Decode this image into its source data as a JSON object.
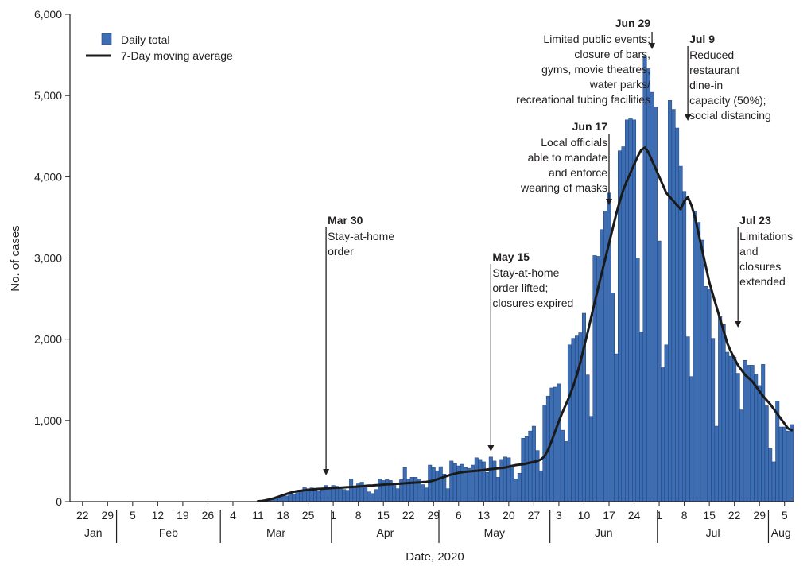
{
  "chart_data": {
    "type": "bar",
    "xlabel": "Date, 2020",
    "ylabel": "No. of cases",
    "ylim": [
      0,
      6000
    ],
    "y_ticks": [
      "0",
      "1,000",
      "2,000",
      "3,000",
      "4,000",
      "5,000",
      "6,000"
    ],
    "x_start_date": "2020-01-19",
    "x_end_date": "2020-08-07",
    "x_ticks": [
      {
        "date": "2020-01-22",
        "label": "22"
      },
      {
        "date": "2020-01-29",
        "label": "29"
      },
      {
        "date": "2020-02-05",
        "label": "5"
      },
      {
        "date": "2020-02-12",
        "label": "12"
      },
      {
        "date": "2020-02-19",
        "label": "19"
      },
      {
        "date": "2020-02-26",
        "label": "26"
      },
      {
        "date": "2020-03-04",
        "label": "4"
      },
      {
        "date": "2020-03-11",
        "label": "11"
      },
      {
        "date": "2020-03-18",
        "label": "18"
      },
      {
        "date": "2020-03-25",
        "label": "25"
      },
      {
        "date": "2020-04-01",
        "label": "1"
      },
      {
        "date": "2020-04-08",
        "label": "8"
      },
      {
        "date": "2020-04-15",
        "label": "15"
      },
      {
        "date": "2020-04-22",
        "label": "22"
      },
      {
        "date": "2020-04-29",
        "label": "29"
      },
      {
        "date": "2020-05-06",
        "label": "6"
      },
      {
        "date": "2020-05-13",
        "label": "13"
      },
      {
        "date": "2020-05-20",
        "label": "20"
      },
      {
        "date": "2020-05-27",
        "label": "27"
      },
      {
        "date": "2020-06-03",
        "label": "3"
      },
      {
        "date": "2020-06-10",
        "label": "10"
      },
      {
        "date": "2020-06-17",
        "label": "17"
      },
      {
        "date": "2020-06-24",
        "label": "24"
      },
      {
        "date": "2020-07-01",
        "label": "1"
      },
      {
        "date": "2020-07-08",
        "label": "8"
      },
      {
        "date": "2020-07-15",
        "label": "15"
      },
      {
        "date": "2020-07-22",
        "label": "22"
      },
      {
        "date": "2020-07-29",
        "label": "29"
      },
      {
        "date": "2020-08-05",
        "label": "5"
      }
    ],
    "months": [
      {
        "label": "Jan",
        "start": "2020-01-19",
        "end": "2020-01-31"
      },
      {
        "label": "Feb",
        "start": "2020-02-01",
        "end": "2020-02-29"
      },
      {
        "label": "Mar",
        "start": "2020-03-01",
        "end": "2020-03-31"
      },
      {
        "label": "Apr",
        "start": "2020-04-01",
        "end": "2020-04-30"
      },
      {
        "label": "May",
        "start": "2020-05-01",
        "end": "2020-05-31"
      },
      {
        "label": "Jun",
        "start": "2020-06-01",
        "end": "2020-06-30"
      },
      {
        "label": "Jul",
        "start": "2020-07-01",
        "end": "2020-07-31"
      },
      {
        "label": "Aug",
        "start": "2020-08-01",
        "end": "2020-08-07"
      }
    ],
    "daily_start": "2020-03-11",
    "series": [
      {
        "name": "Daily total",
        "color": "#3d6eb3",
        "values": [
          2,
          5,
          10,
          15,
          25,
          45,
          60,
          90,
          70,
          110,
          90,
          140,
          120,
          180,
          160,
          170,
          150,
          130,
          170,
          200,
          160,
          200,
          190,
          170,
          150,
          140,
          280,
          170,
          220,
          240,
          180,
          120,
          100,
          150,
          280,
          260,
          270,
          260,
          200,
          160,
          270,
          420,
          280,
          300,
          300,
          280,
          210,
          170,
          450,
          420,
          380,
          430,
          340,
          160,
          500,
          470,
          440,
          460,
          420,
          410,
          450,
          540,
          520,
          490,
          360,
          550,
          500,
          300,
          520,
          550,
          540,
          450,
          280,
          350,
          780,
          800,
          870,
          930,
          630,
          380,
          1190,
          1300,
          1400,
          1410,
          1450,
          880,
          740,
          1930,
          2010,
          2040,
          2080,
          2320,
          1560,
          1050,
          3030,
          3020,
          3350,
          3580,
          3800,
          2570,
          1820,
          4320,
          4370,
          4700,
          4720,
          4700,
          3000,
          2090,
          5480,
          5330,
          5040,
          4860,
          3210,
          1650,
          1930,
          4940,
          4830,
          4600,
          4130,
          3820,
          2030,
          1540,
          3580,
          3440,
          3220,
          2650,
          2620,
          2010,
          930,
          2280,
          2180,
          1840,
          1790,
          1780,
          1580,
          1130,
          1740,
          1680,
          1680,
          1570,
          1430,
          1690,
          1180,
          660,
          490,
          1240,
          920,
          920,
          870,
          950
        ]
      },
      {
        "name": "7-Day moving average",
        "color": "#1a1a1a",
        "values": [
          5,
          8,
          15,
          25,
          35,
          50,
          65,
          80,
          95,
          110,
          120,
          130,
          135,
          140,
          145,
          150,
          155,
          158,
          160,
          162,
          165,
          168,
          170,
          172,
          175,
          178,
          180,
          183,
          186,
          190,
          195,
          198,
          200,
          203,
          206,
          209,
          212,
          215,
          218,
          220,
          223,
          226,
          229,
          232,
          235,
          238,
          241,
          244,
          250,
          260,
          275,
          290,
          305,
          320,
          335,
          345,
          355,
          362,
          368,
          372,
          376,
          380,
          385,
          390,
          395,
          400,
          405,
          410,
          415,
          420,
          430,
          440,
          450,
          455,
          460,
          470,
          480,
          490,
          500,
          520,
          560,
          640,
          750,
          870,
          990,
          1100,
          1200,
          1300,
          1420,
          1560,
          1720,
          1900,
          2080,
          2270,
          2460,
          2640,
          2820,
          3000,
          3180,
          3360,
          3540,
          3700,
          3840,
          3950,
          4050,
          4150,
          4250,
          4330,
          4360,
          4300,
          4200,
          4100,
          4000,
          3900,
          3800,
          3750,
          3700,
          3650,
          3600,
          3700,
          3750,
          3650,
          3500,
          3300,
          3100,
          2900,
          2700,
          2550,
          2400,
          2250,
          2100,
          1950,
          1850,
          1760,
          1680,
          1620,
          1560,
          1520,
          1480,
          1420,
          1360,
          1300,
          1250,
          1200,
          1140,
          1080,
          1020,
          960,
          900,
          880
        ]
      }
    ],
    "legend": {
      "position": "top-left",
      "entries": [
        "Daily total",
        "7-Day moving average"
      ]
    },
    "annotations": [
      {
        "date_label": "Mar 30",
        "lines": [
          "Stay-at-home",
          "order"
        ],
        "date": "2020-03-30",
        "align": "left"
      },
      {
        "date_label": "May 15",
        "lines": [
          "Stay-at-home",
          "order lifted;",
          "closures expired"
        ],
        "date": "2020-05-15",
        "align": "left"
      },
      {
        "date_label": "Jun 17",
        "lines": [
          "Local officials",
          "able to mandate",
          "and enforce",
          "wearing of masks"
        ],
        "date": "2020-06-17",
        "align": "right"
      },
      {
        "date_label": "Jun 29",
        "lines": [
          "Limited public events;",
          "closure of bars,",
          "gyms, movie theatres,",
          "water parks/",
          "recreational tubing facilities"
        ],
        "date": "2020-06-29",
        "align": "right"
      },
      {
        "date_label": "Jul 9",
        "lines": [
          "Reduced",
          "restaurant",
          "dine-in",
          "capacity (50%);",
          "social distancing"
        ],
        "date": "2020-07-09",
        "align": "left"
      },
      {
        "date_label": "Jul 23",
        "lines": [
          "Limitations",
          "and",
          "closures",
          "extended"
        ],
        "date": "2020-07-23",
        "align": "left"
      }
    ]
  }
}
